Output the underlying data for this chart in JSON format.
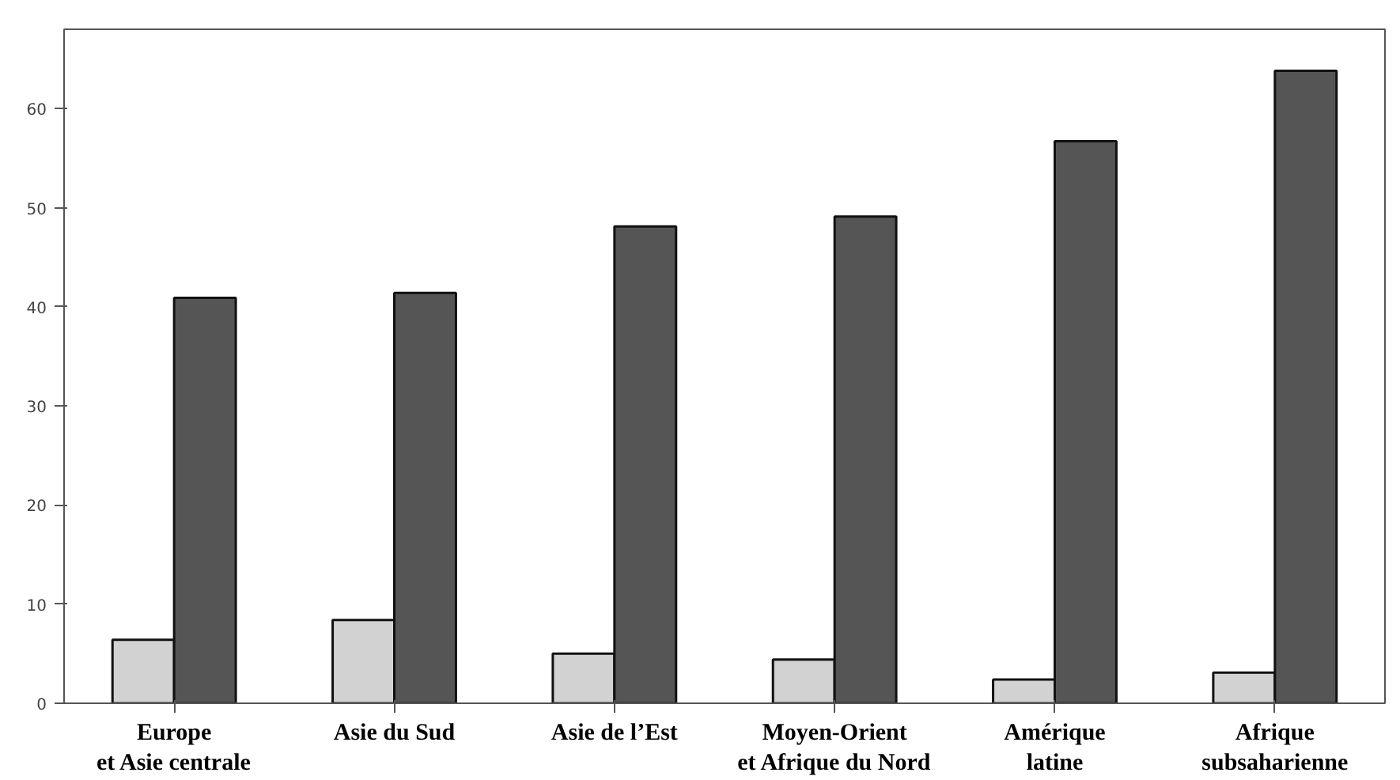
{
  "chart_data": {
    "type": "bar",
    "categories": [
      "Europe\net Asie centrale",
      "Asie du Sud",
      "Asie de l’Est",
      "Moyen-Orient\net Afrique du Nord",
      "Amérique\nlatine",
      "Afrique\nsubsaharienne"
    ],
    "series": [
      {
        "color": "#d2d2d2",
        "values": [
          6.4,
          8.4,
          5.0,
          4.4,
          2.4,
          3.1
        ]
      },
      {
        "color": "#555555",
        "values": [
          40.9,
          41.4,
          48.1,
          49.1,
          56.7,
          63.8
        ]
      }
    ],
    "ylim": [
      0,
      68
    ],
    "yticks": [
      0,
      10,
      20,
      30,
      40,
      50,
      60
    ],
    "grid": false
  }
}
